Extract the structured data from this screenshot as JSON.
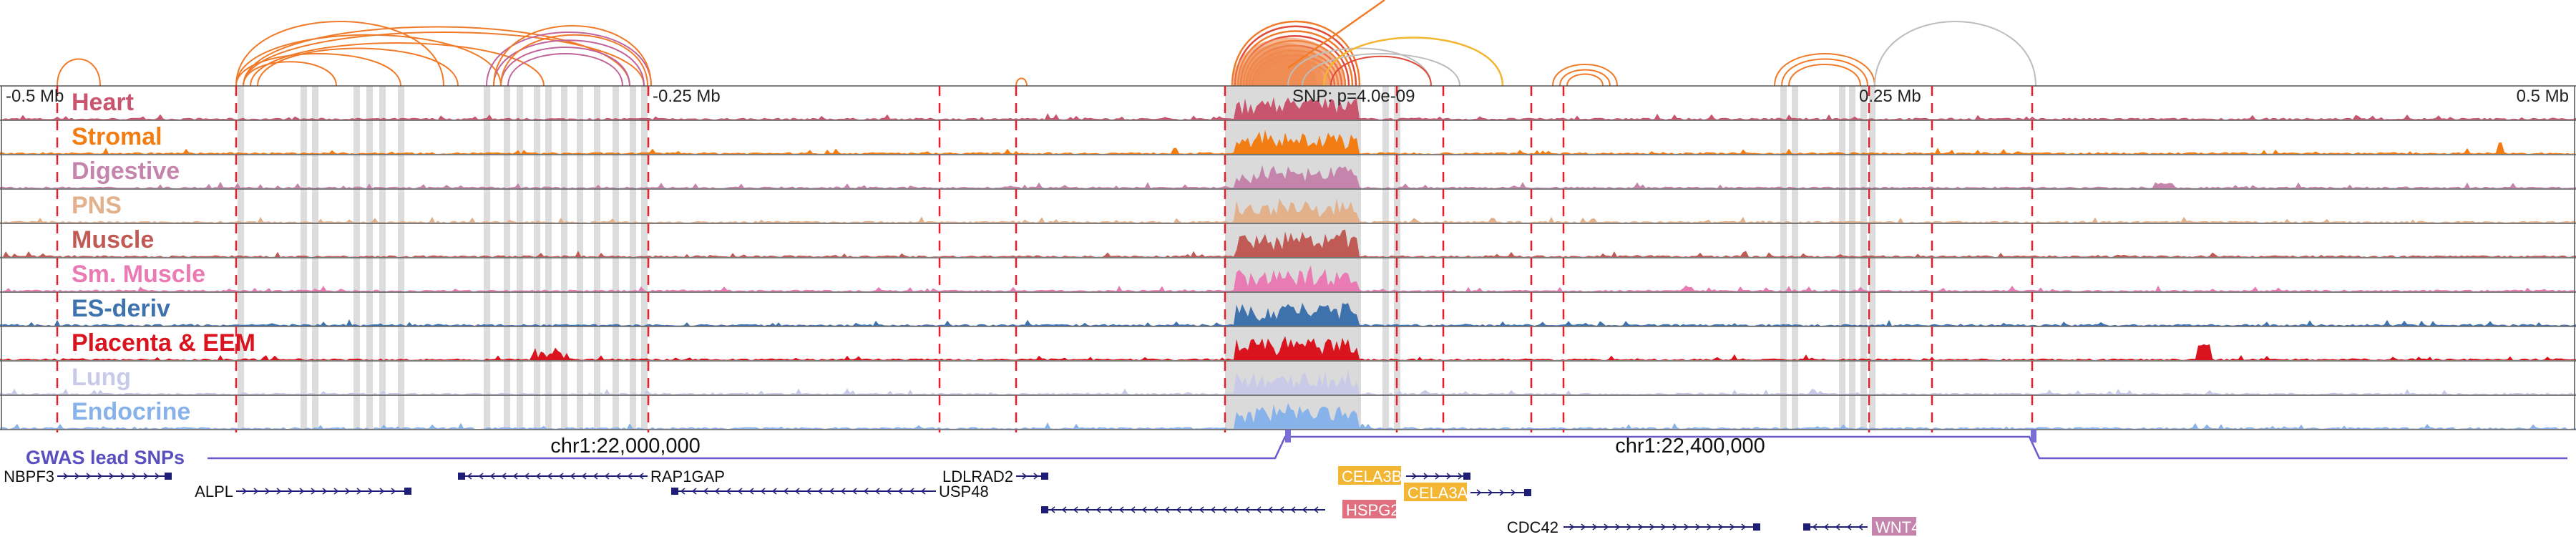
{
  "colors": {
    "loop_orange": "#f07a28",
    "loop_red": "#e04a3a",
    "loop_pink": "#c0649a",
    "loop_gold": "#f2b632",
    "loop_grey": "#bdbdbd",
    "dashed_red": "#e81e2a",
    "grey_highlight": "#d4d4d4",
    "track_line": "#555555",
    "gwas_line": "#6a5acd",
    "gene_navy": "#1e1e78"
  },
  "scale_labels": [
    "-0.5 Mb",
    "-0.25 Mb",
    "SNP: p=4.0e-09",
    "0.25 Mb",
    "0.5 Mb"
  ],
  "tracks": [
    {
      "name": "Heart",
      "color": "#c9546e"
    },
    {
      "name": "Stromal",
      "color": "#f27d12"
    },
    {
      "name": "Digestive",
      "color": "#c484ab"
    },
    {
      "name": "PNS",
      "color": "#e2b08a"
    },
    {
      "name": "Muscle",
      "color": "#c05a54"
    },
    {
      "name": "Sm. Muscle",
      "color": "#ea7ab4"
    },
    {
      "name": "ES-deriv",
      "color": "#3d72ac"
    },
    {
      "name": "Placenta & EEM",
      "color": "#d9141e"
    },
    {
      "name": "Lung",
      "color": "#c9cae8"
    },
    {
      "name": "Endocrine",
      "color": "#88b2ea"
    }
  ],
  "gwas": {
    "label": "GWAS lead SNPs",
    "coord_left": "chr1:22,000,000",
    "coord_right": "chr1:22,400,000"
  },
  "genes": [
    {
      "name": "NBPF3",
      "strand": "+",
      "color": "#1e1e78",
      "boxed": false
    },
    {
      "name": "ALPL",
      "strand": "+",
      "color": "#1e1e78",
      "boxed": false
    },
    {
      "name": "RAP1GAP",
      "strand": "-",
      "color": "#1e1e78",
      "boxed": false
    },
    {
      "name": "USP48",
      "strand": "-",
      "color": "#1e1e78",
      "boxed": false
    },
    {
      "name": "LDLRAD2",
      "strand": "+",
      "color": "#1e1e78",
      "boxed": false
    },
    {
      "name": "HSPG2",
      "strand": "-",
      "color": "#e07080",
      "boxed": true
    },
    {
      "name": "CELA3B",
      "strand": "+",
      "color": "#f2b632",
      "boxed": true
    },
    {
      "name": "CELA3A",
      "strand": "+",
      "color": "#f2b632",
      "boxed": true
    },
    {
      "name": "CDC42",
      "strand": "+",
      "color": "#1e1e78",
      "boxed": false
    },
    {
      "name": "WNT4",
      "strand": "-",
      "color": "#c484ab",
      "boxed": true
    }
  ]
}
